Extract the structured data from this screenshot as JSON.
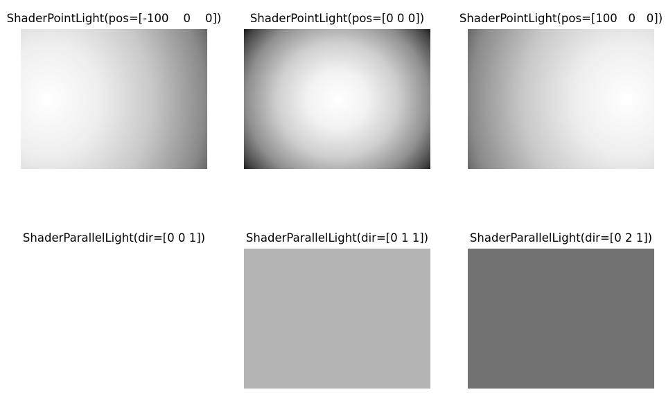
{
  "panels": [
    {
      "title": "ShaderPointLight(pos=[-100    0    0])",
      "fill_color": "",
      "light": "point-left"
    },
    {
      "title": "ShaderPointLight(pos=[0 0 0])",
      "fill_color": "",
      "light": "point-center"
    },
    {
      "title": "ShaderPointLight(pos=[100   0   0])",
      "fill_color": "",
      "light": "point-right"
    },
    {
      "title": "ShaderParallelLight(dir=[0 0 1])",
      "fill_color": "#fefefe",
      "light": "parallel"
    },
    {
      "title": "ShaderParallelLight(dir=[0 1 1])",
      "fill_color": "#b4b4b4",
      "light": "parallel"
    },
    {
      "title": "ShaderParallelLight(dir=[0 2 1])",
      "fill_color": "#727272",
      "light": "parallel"
    }
  ]
}
